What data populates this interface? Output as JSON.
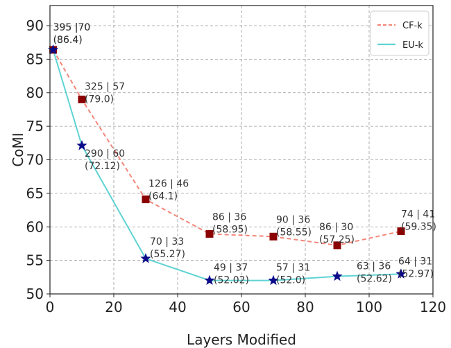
{
  "chart_data": {
    "type": "line",
    "title": "",
    "xlabel": "Layers Modified",
    "ylabel": "CoMI",
    "xlim": [
      0,
      120
    ],
    "ylim": [
      50,
      93
    ],
    "xticks": [
      0,
      20,
      40,
      60,
      80,
      100,
      120
    ],
    "yticks": [
      50,
      55,
      60,
      65,
      70,
      75,
      80,
      85,
      90
    ],
    "grid": true,
    "legend_position": "top-right",
    "series": [
      {
        "name": "CF-k",
        "color": "#f4867a",
        "line_style": "dashed",
        "marker": "square",
        "marker_color": "#8b0000",
        "points": [
          {
            "x": 1,
            "y": 86.4,
            "label": "395 |70",
            "value_label": "(86.4)"
          },
          {
            "x": 10,
            "y": 79.0,
            "label": "325 | 57",
            "value_label": "(79.0)"
          },
          {
            "x": 30,
            "y": 64.1,
            "label": "126 | 46",
            "value_label": "(64.1)"
          },
          {
            "x": 50,
            "y": 58.95,
            "label": "86 | 36",
            "value_label": "(58.95)"
          },
          {
            "x": 70,
            "y": 58.55,
            "label": "90 | 36",
            "value_label": "(58.55)"
          },
          {
            "x": 90,
            "y": 57.25,
            "label": "86 | 30",
            "value_label": "(57.25)"
          },
          {
            "x": 110,
            "y": 59.35,
            "label": "74 | 41",
            "value_label": "(59.35)"
          }
        ]
      },
      {
        "name": "EU-k",
        "color": "#5fd3d3",
        "line_style": "solid",
        "marker": "star",
        "marker_color": "#0a0a8a",
        "points": [
          {
            "x": 1,
            "y": 86.4,
            "label": "395 |70",
            "value_label": "(86.4)"
          },
          {
            "x": 10,
            "y": 72.12,
            "label": "290 | 60",
            "value_label": "(72.12)"
          },
          {
            "x": 30,
            "y": 55.27,
            "label": "70 | 33",
            "value_label": "(55.27)"
          },
          {
            "x": 50,
            "y": 52.02,
            "label": "49 | 37",
            "value_label": "(52.02)"
          },
          {
            "x": 70,
            "y": 52.0,
            "label": "57 | 31",
            "value_label": "(52.0)"
          },
          {
            "x": 90,
            "y": 52.62,
            "label": "63 | 36",
            "value_label": "(52.62)"
          },
          {
            "x": 110,
            "y": 52.97,
            "label": "64 | 31",
            "value_label": "(52.97)"
          }
        ]
      }
    ]
  }
}
